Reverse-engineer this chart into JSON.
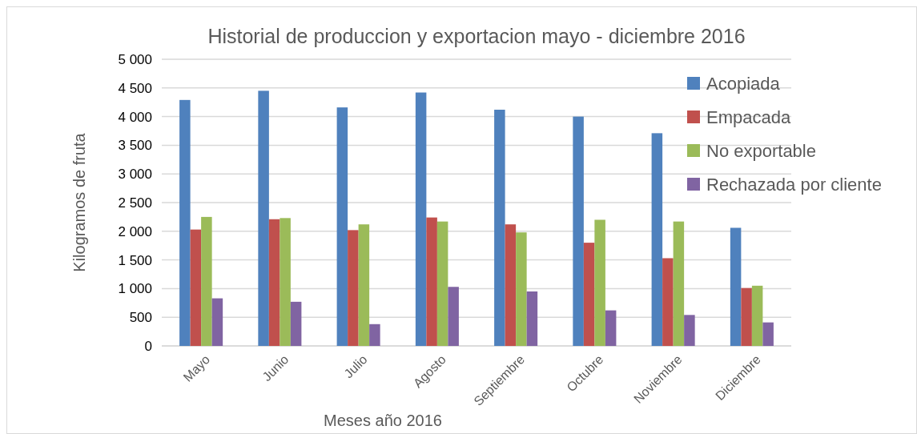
{
  "chart_data": {
    "type": "bar",
    "title": "Historial de produccion y exportacion mayo - diciembre 2016",
    "xlabel": "Meses año 2016",
    "ylabel": "Kilogramos de fruta",
    "categories": [
      "Mayo",
      "Junio",
      "Julio",
      "Agosto",
      "Septiembre",
      "Octubre",
      "Noviembre",
      "Diciembre"
    ],
    "series": [
      {
        "name": "Acopiada",
        "color": "#4f81bd",
        "values": [
          4290,
          4450,
          4160,
          4420,
          4120,
          4000,
          3710,
          2060
        ]
      },
      {
        "name": "Empacada",
        "color": "#c0504d",
        "values": [
          2030,
          2210,
          2020,
          2240,
          2120,
          1800,
          1530,
          1010
        ]
      },
      {
        "name": "No exportable",
        "color": "#9bbb59",
        "values": [
          2250,
          2230,
          2120,
          2170,
          1980,
          2200,
          2170,
          1050
        ]
      },
      {
        "name": "Rechazada por cliente",
        "color": "#8064a2",
        "values": [
          830,
          770,
          380,
          1030,
          950,
          620,
          540,
          410
        ]
      }
    ],
    "ylim": [
      0,
      5000
    ],
    "yticks": [
      {
        "value": 0,
        "label": "0"
      },
      {
        "value": 500,
        "label": "500"
      },
      {
        "value": 1000,
        "label": "1 000"
      },
      {
        "value": 1500,
        "label": "1 500"
      },
      {
        "value": 2000,
        "label": "2 000"
      },
      {
        "value": 2500,
        "label": "2 500"
      },
      {
        "value": 3000,
        "label": "3 000"
      },
      {
        "value": 3500,
        "label": "3 500"
      },
      {
        "value": 4000,
        "label": "4 000"
      },
      {
        "value": 4500,
        "label": "4 500"
      },
      {
        "value": 5000,
        "label": "5 000"
      }
    ],
    "grid": "y",
    "legend": "top right"
  }
}
